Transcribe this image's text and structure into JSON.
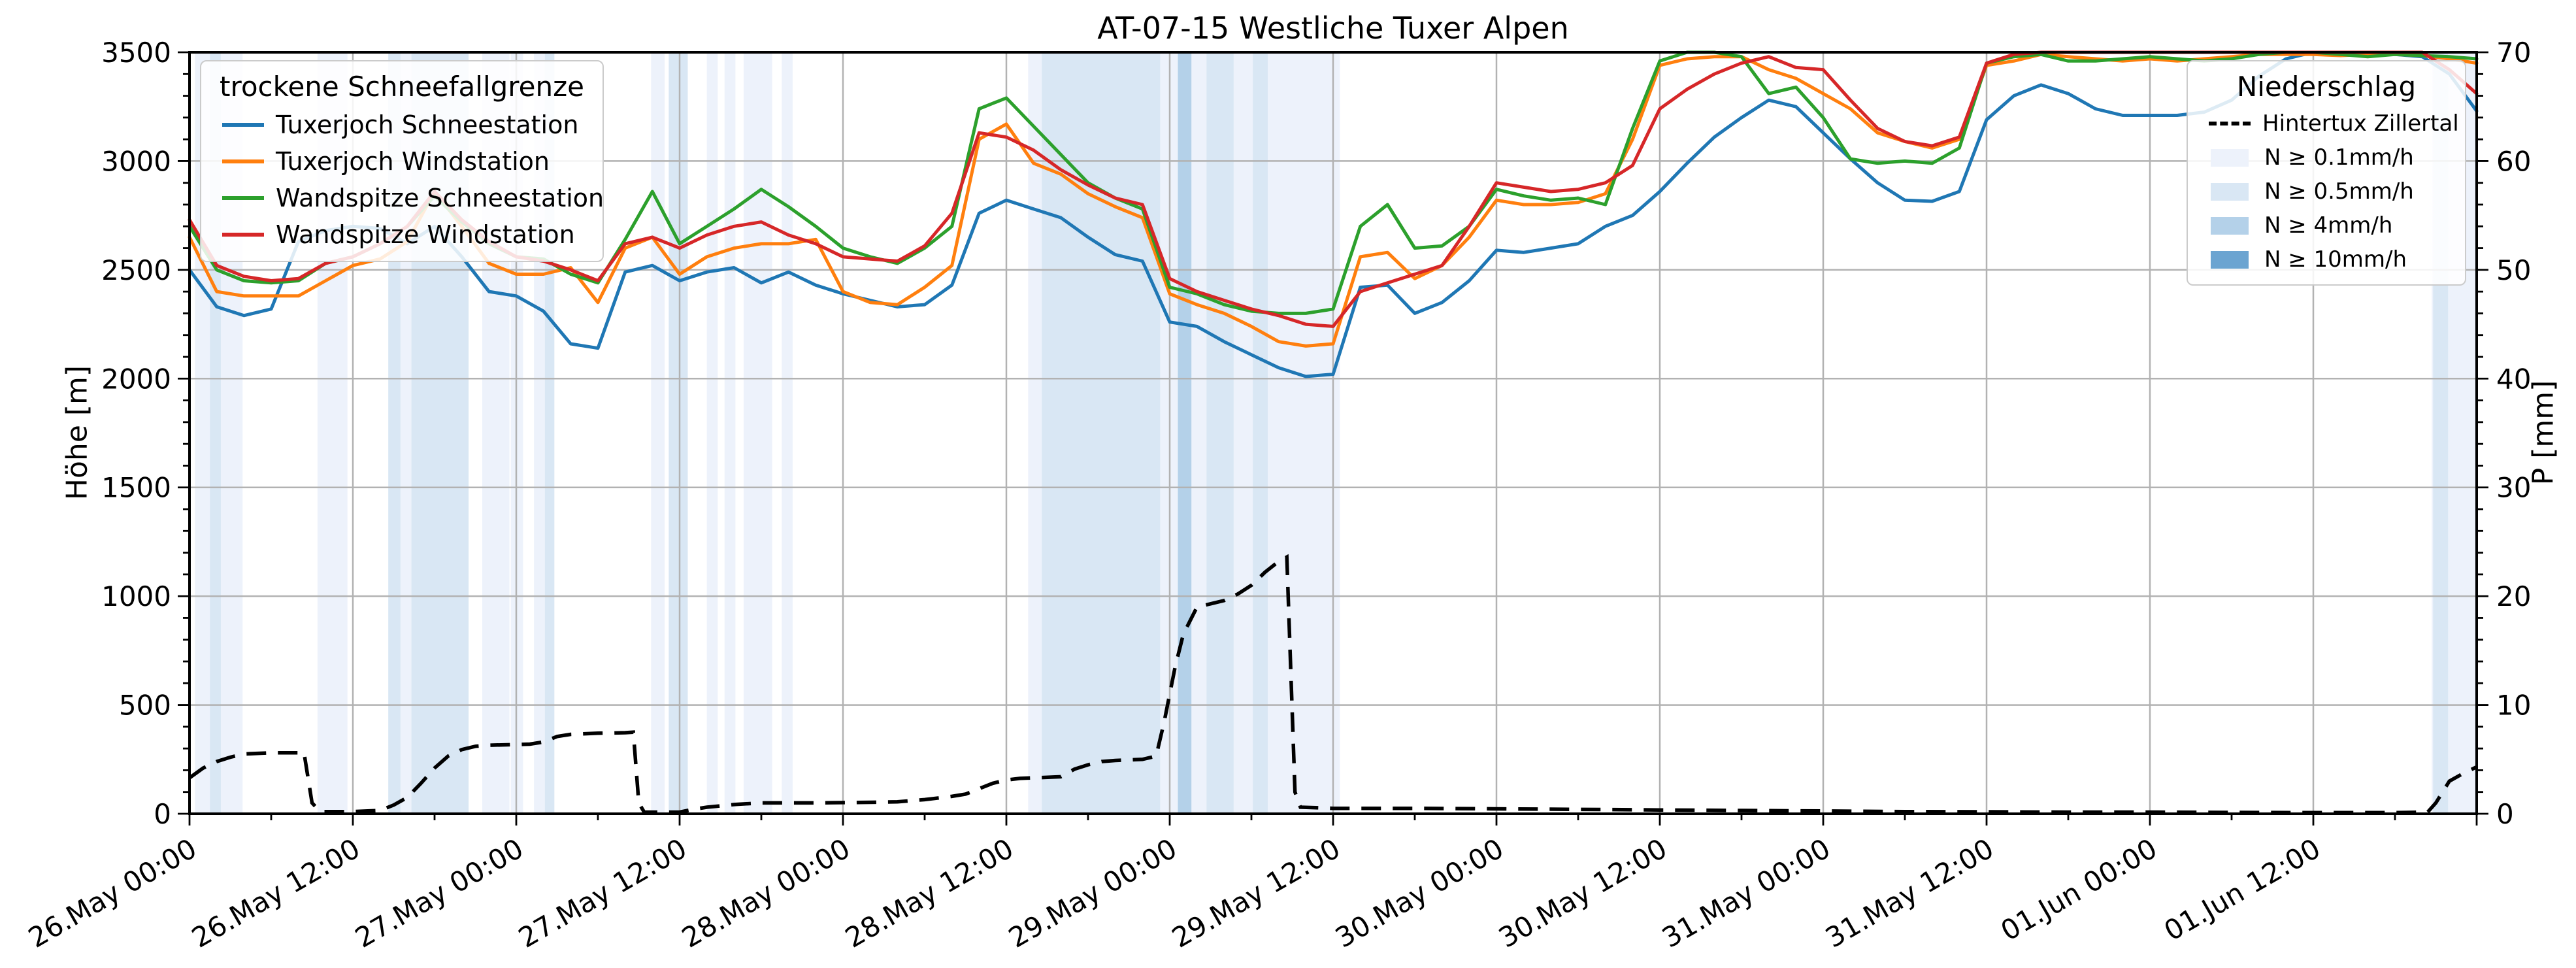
{
  "chart_data": {
    "type": "line",
    "title": "AT-07-15 Westliche Tuxer Alpen",
    "grid": true,
    "y_left": {
      "label": "Höhe [m]",
      "range": [
        0,
        3500
      ],
      "major_step": 500,
      "minor_step": 100,
      "ticks": [
        0,
        500,
        1000,
        1500,
        2000,
        2500,
        3000,
        3500
      ]
    },
    "y_right": {
      "label": "P [mm]",
      "range": [
        0,
        70
      ],
      "major_step": 10,
      "minor_step": 2,
      "ticks": [
        0,
        10,
        20,
        30,
        40,
        50,
        60,
        70
      ]
    },
    "x_axis": {
      "range_hours": [
        0,
        168
      ],
      "major_step_h": 12,
      "minor_step_h": 6,
      "ticks": [
        {
          "h": 0,
          "label": "26.May 00:00"
        },
        {
          "h": 12,
          "label": "26.May 12:00"
        },
        {
          "h": 24,
          "label": "27.May 00:00"
        },
        {
          "h": 36,
          "label": "27.May 12:00"
        },
        {
          "h": 48,
          "label": "28.May 00:00"
        },
        {
          "h": 60,
          "label": "28.May 12:00"
        },
        {
          "h": 72,
          "label": "29.May 00:00"
        },
        {
          "h": 84,
          "label": "29.May 12:00"
        },
        {
          "h": 96,
          "label": "30.May 00:00"
        },
        {
          "h": 108,
          "label": "30.May 12:00"
        },
        {
          "h": 120,
          "label": "31.May 00:00"
        },
        {
          "h": 132,
          "label": "31.May 12:00"
        },
        {
          "h": 144,
          "label": "01.Jun 00:00"
        },
        {
          "h": 156,
          "label": "01.Jun 12:00"
        }
      ]
    },
    "series_start_hour": 0,
    "series_step_hours": 2,
    "series": [
      {
        "name": "Tuxerjoch Schneestation",
        "color": "#1f77b4",
        "values": [
          2500,
          2330,
          2290,
          2320,
          2630,
          2680,
          2700,
          2690,
          2620,
          2700,
          2560,
          2400,
          2380,
          2310,
          2160,
          2140,
          2490,
          2520,
          2450,
          2490,
          2510,
          2440,
          2490,
          2430,
          2390,
          2360,
          2330,
          2340,
          2430,
          2760,
          2820,
          2780,
          2740,
          2650,
          2570,
          2540,
          2260,
          2240,
          2170,
          2110,
          2050,
          2010,
          2020,
          2420,
          2430,
          2300,
          2350,
          2450,
          2590,
          2580,
          2600,
          2620,
          2700,
          2750,
          2860,
          2990,
          3110,
          3200,
          3280,
          3250,
          3130,
          3010,
          2900,
          2820,
          2815,
          2860,
          3190,
          3300,
          3350,
          3310,
          3240,
          3210,
          3210,
          3210,
          3225,
          3280,
          3390,
          3470,
          3500,
          3500,
          3495,
          3490,
          3480,
          3400,
          3230
        ]
      },
      {
        "name": "Tuxerjoch Windstation",
        "color": "#ff7f0e",
        "values": [
          2650,
          2400,
          2380,
          2380,
          2380,
          2450,
          2520,
          2550,
          2630,
          2860,
          2700,
          2530,
          2480,
          2480,
          2510,
          2350,
          2600,
          2650,
          2480,
          2560,
          2600,
          2620,
          2620,
          2640,
          2400,
          2350,
          2340,
          2420,
          2520,
          3100,
          3170,
          2990,
          2940,
          2850,
          2790,
          2740,
          2390,
          2340,
          2300,
          2240,
          2170,
          2150,
          2160,
          2560,
          2580,
          2460,
          2520,
          2650,
          2820,
          2800,
          2800,
          2810,
          2850,
          3100,
          3440,
          3470,
          3480,
          3480,
          3420,
          3380,
          3310,
          3240,
          3130,
          3090,
          3060,
          3100,
          3440,
          3460,
          3490,
          3480,
          3470,
          3460,
          3470,
          3460,
          3470,
          3480,
          3490,
          3490,
          3490,
          3485,
          3490,
          3490,
          3485,
          3470,
          3450
        ]
      },
      {
        "name": "Wandspitze Schneestation",
        "color": "#2ca02c",
        "values": [
          2700,
          2500,
          2450,
          2440,
          2450,
          2530,
          2560,
          2620,
          2700,
          2840,
          2720,
          2620,
          2560,
          2550,
          2480,
          2440,
          2640,
          2860,
          2620,
          2700,
          2780,
          2870,
          2790,
          2700,
          2600,
          2560,
          2530,
          2600,
          2700,
          3240,
          3290,
          3160,
          3030,
          2900,
          2830,
          2780,
          2420,
          2390,
          2340,
          2310,
          2300,
          2300,
          2320,
          2700,
          2800,
          2600,
          2610,
          2700,
          2870,
          2840,
          2820,
          2830,
          2800,
          3150,
          3460,
          3500,
          3500,
          3480,
          3310,
          3340,
          3200,
          3010,
          2990,
          3000,
          2990,
          3060,
          3450,
          3480,
          3490,
          3460,
          3460,
          3470,
          3480,
          3470,
          3460,
          3470,
          3490,
          3500,
          3500,
          3490,
          3480,
          3490,
          3485,
          3480,
          3470
        ]
      },
      {
        "name": "Wandspitze Windstation",
        "color": "#d62728",
        "values": [
          2730,
          2520,
          2470,
          2450,
          2460,
          2530,
          2560,
          2620,
          2700,
          2860,
          2730,
          2630,
          2560,
          2540,
          2500,
          2450,
          2620,
          2650,
          2600,
          2660,
          2700,
          2720,
          2660,
          2620,
          2560,
          2550,
          2540,
          2610,
          2760,
          3130,
          3110,
          3050,
          2960,
          2890,
          2830,
          2800,
          2460,
          2400,
          2360,
          2320,
          2290,
          2250,
          2240,
          2400,
          2440,
          2480,
          2520,
          2700,
          2900,
          2880,
          2860,
          2870,
          2900,
          2980,
          3240,
          3330,
          3400,
          3450,
          3480,
          3430,
          3420,
          3280,
          3150,
          3090,
          3070,
          3110,
          3450,
          3490,
          3500,
          3500,
          3500,
          3500,
          3500,
          3500,
          3500,
          3500,
          3500,
          3500,
          3500,
          3500,
          3500,
          3500,
          3500,
          3420,
          3310
        ]
      }
    ],
    "precipitation": {
      "name": "Hintertux Zillertal",
      "color": "#000000",
      "style": "dashed",
      "unit": "mm",
      "points": [
        [
          0,
          3.3
        ],
        [
          1,
          4.2
        ],
        [
          2,
          4.8
        ],
        [
          3,
          5.2
        ],
        [
          4,
          5.5
        ],
        [
          6,
          5.6
        ],
        [
          8,
          5.6
        ],
        [
          8.4,
          5.7
        ],
        [
          9,
          1.0
        ],
        [
          9.6,
          0.2
        ],
        [
          12,
          0.2
        ],
        [
          14,
          0.3
        ],
        [
          15,
          0.8
        ],
        [
          16,
          1.5
        ],
        [
          17,
          2.8
        ],
        [
          18,
          4.2
        ],
        [
          19,
          5.3
        ],
        [
          20,
          5.9
        ],
        [
          21,
          6.2
        ],
        [
          22,
          6.3
        ],
        [
          25,
          6.4
        ],
        [
          26,
          6.6
        ],
        [
          27,
          7.1
        ],
        [
          28,
          7.3
        ],
        [
          30,
          7.4
        ],
        [
          32,
          7.45
        ],
        [
          32.6,
          7.5
        ],
        [
          33,
          1.0
        ],
        [
          33.4,
          0.15
        ],
        [
          36,
          0.15
        ],
        [
          37,
          0.4
        ],
        [
          38,
          0.6
        ],
        [
          40,
          0.85
        ],
        [
          42,
          1.0
        ],
        [
          46,
          1.0
        ],
        [
          50,
          1.05
        ],
        [
          52,
          1.1
        ],
        [
          54,
          1.3
        ],
        [
          56,
          1.6
        ],
        [
          57,
          1.8
        ],
        [
          58,
          2.3
        ],
        [
          59,
          2.8
        ],
        [
          60,
          3.1
        ],
        [
          61,
          3.25
        ],
        [
          62,
          3.3
        ],
        [
          64,
          3.4
        ],
        [
          65,
          4.1
        ],
        [
          66,
          4.5
        ],
        [
          67,
          4.8
        ],
        [
          68,
          4.9
        ],
        [
          70,
          5.0
        ],
        [
          71,
          5.3
        ],
        [
          71.6,
          8.5
        ],
        [
          72,
          11.0
        ],
        [
          72.4,
          13.5
        ],
        [
          73,
          16.5
        ],
        [
          74,
          19.0
        ],
        [
          75,
          19.3
        ],
        [
          76,
          19.6
        ],
        [
          77,
          20.2
        ],
        [
          78,
          21.0
        ],
        [
          79,
          22.2
        ],
        [
          80,
          23.2
        ],
        [
          80.6,
          23.6
        ],
        [
          81.2,
          2.0
        ],
        [
          81.6,
          0.6
        ],
        [
          84,
          0.5
        ],
        [
          90,
          0.5
        ],
        [
          96,
          0.45
        ],
        [
          102,
          0.4
        ],
        [
          108,
          0.35
        ],
        [
          114,
          0.3
        ],
        [
          120,
          0.25
        ],
        [
          126,
          0.2
        ],
        [
          132,
          0.18
        ],
        [
          138,
          0.15
        ],
        [
          144,
          0.15
        ],
        [
          150,
          0.12
        ],
        [
          156,
          0.1
        ],
        [
          162,
          0.1
        ],
        [
          164.4,
          0.15
        ],
        [
          165,
          1.0
        ],
        [
          166,
          3.0
        ],
        [
          167,
          3.7
        ],
        [
          168,
          4.3
        ]
      ]
    },
    "band_colors": {
      "0.1": "#edf2fb",
      "0.5": "#d9e7f4",
      "4": "#b4d1e9",
      "10": "#6ba4d1"
    },
    "bands": [
      [
        0.4,
        3.9,
        "0.1"
      ],
      [
        1.5,
        2.3,
        "0.5"
      ],
      [
        9.4,
        11.6,
        "0.1"
      ],
      [
        14.6,
        15.5,
        "0.5"
      ],
      [
        15.5,
        16.3,
        "0.1"
      ],
      [
        16.3,
        20.5,
        "0.5"
      ],
      [
        21.5,
        23.5,
        "0.1"
      ],
      [
        23.6,
        24.5,
        "0.1"
      ],
      [
        25.3,
        26.1,
        "0.1"
      ],
      [
        26.1,
        26.8,
        "0.5"
      ],
      [
        33.9,
        34.9,
        "0.1"
      ],
      [
        35.2,
        36.6,
        "0.5"
      ],
      [
        38.0,
        38.8,
        "0.1"
      ],
      [
        39.3,
        40.1,
        "0.1"
      ],
      [
        40.7,
        42.8,
        "0.1"
      ],
      [
        43.5,
        44.3,
        "0.1"
      ],
      [
        61.6,
        62.6,
        "0.1"
      ],
      [
        62.6,
        71.3,
        "0.5"
      ],
      [
        71.3,
        72.6,
        "0.1"
      ],
      [
        72.6,
        73.6,
        "4"
      ],
      [
        73.6,
        74.7,
        "0.1"
      ],
      [
        74.7,
        76.7,
        "0.5"
      ],
      [
        76.7,
        78.1,
        "0.1"
      ],
      [
        78.1,
        79.2,
        "0.5"
      ],
      [
        79.2,
        84.5,
        "0.1"
      ],
      [
        164.7,
        168,
        "0.1"
      ],
      [
        164.8,
        165.9,
        "0.5"
      ]
    ],
    "legend_left": {
      "title": "trockene Schneefallgrenze",
      "items": [
        {
          "label": "Tuxerjoch Schneestation",
          "color": "#1f77b4"
        },
        {
          "label": "Tuxerjoch Windstation",
          "color": "#ff7f0e"
        },
        {
          "label": "Wandspitze Schneestation",
          "color": "#2ca02c"
        },
        {
          "label": "Wandspitze Windstation",
          "color": "#d62728"
        }
      ]
    },
    "legend_right": {
      "title": "Niederschlag",
      "items": [
        {
          "label": "Hintertux Zillertal",
          "type": "dashed-line"
        },
        {
          "label": "N ≥ 0.1mm/h",
          "color": "#edf2fb"
        },
        {
          "label": "N ≥ 0.5mm/h",
          "color": "#d9e7f4"
        },
        {
          "label": "N ≥ 4mm/h",
          "color": "#b4d1e9"
        },
        {
          "label": "N ≥ 10mm/h",
          "color": "#6ba4d1"
        }
      ]
    }
  }
}
